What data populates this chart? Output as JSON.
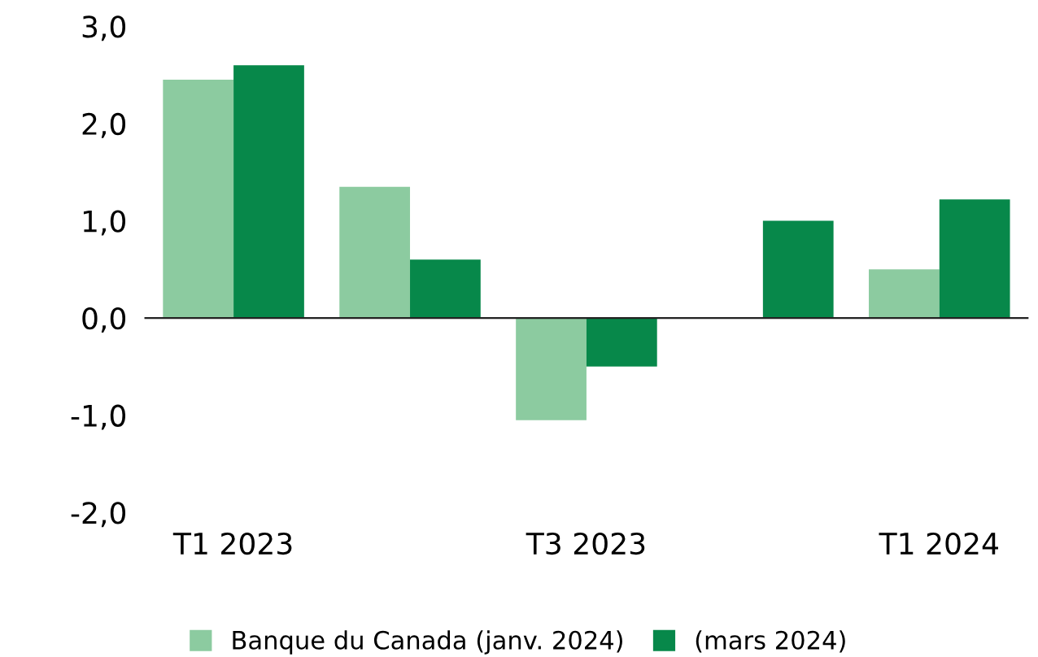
{
  "chart_data": {
    "type": "bar",
    "categories": [
      "T1 2023",
      null,
      "T3 2023",
      null,
      "T1 2024"
    ],
    "series": [
      {
        "name": "Banque du Canada (janv. 2024)",
        "color": "#8ccba0",
        "values": [
          2.45,
          1.35,
          -1.05,
          null,
          0.5
        ]
      },
      {
        "name": "(mars 2024)",
        "color": "#07884a",
        "values": [
          2.6,
          0.6,
          -0.5,
          1.0,
          1.22
        ]
      }
    ],
    "ylim": [
      -2,
      3
    ],
    "yticks": [
      {
        "value": -2,
        "label": "-2,0"
      },
      {
        "value": -1,
        "label": "-1,0"
      },
      {
        "value": 0,
        "label": "0,0"
      },
      {
        "value": 1,
        "label": "1,0"
      },
      {
        "value": 2,
        "label": "2,0"
      },
      {
        "value": 3,
        "label": "3,0"
      }
    ],
    "legend": "bottom"
  }
}
